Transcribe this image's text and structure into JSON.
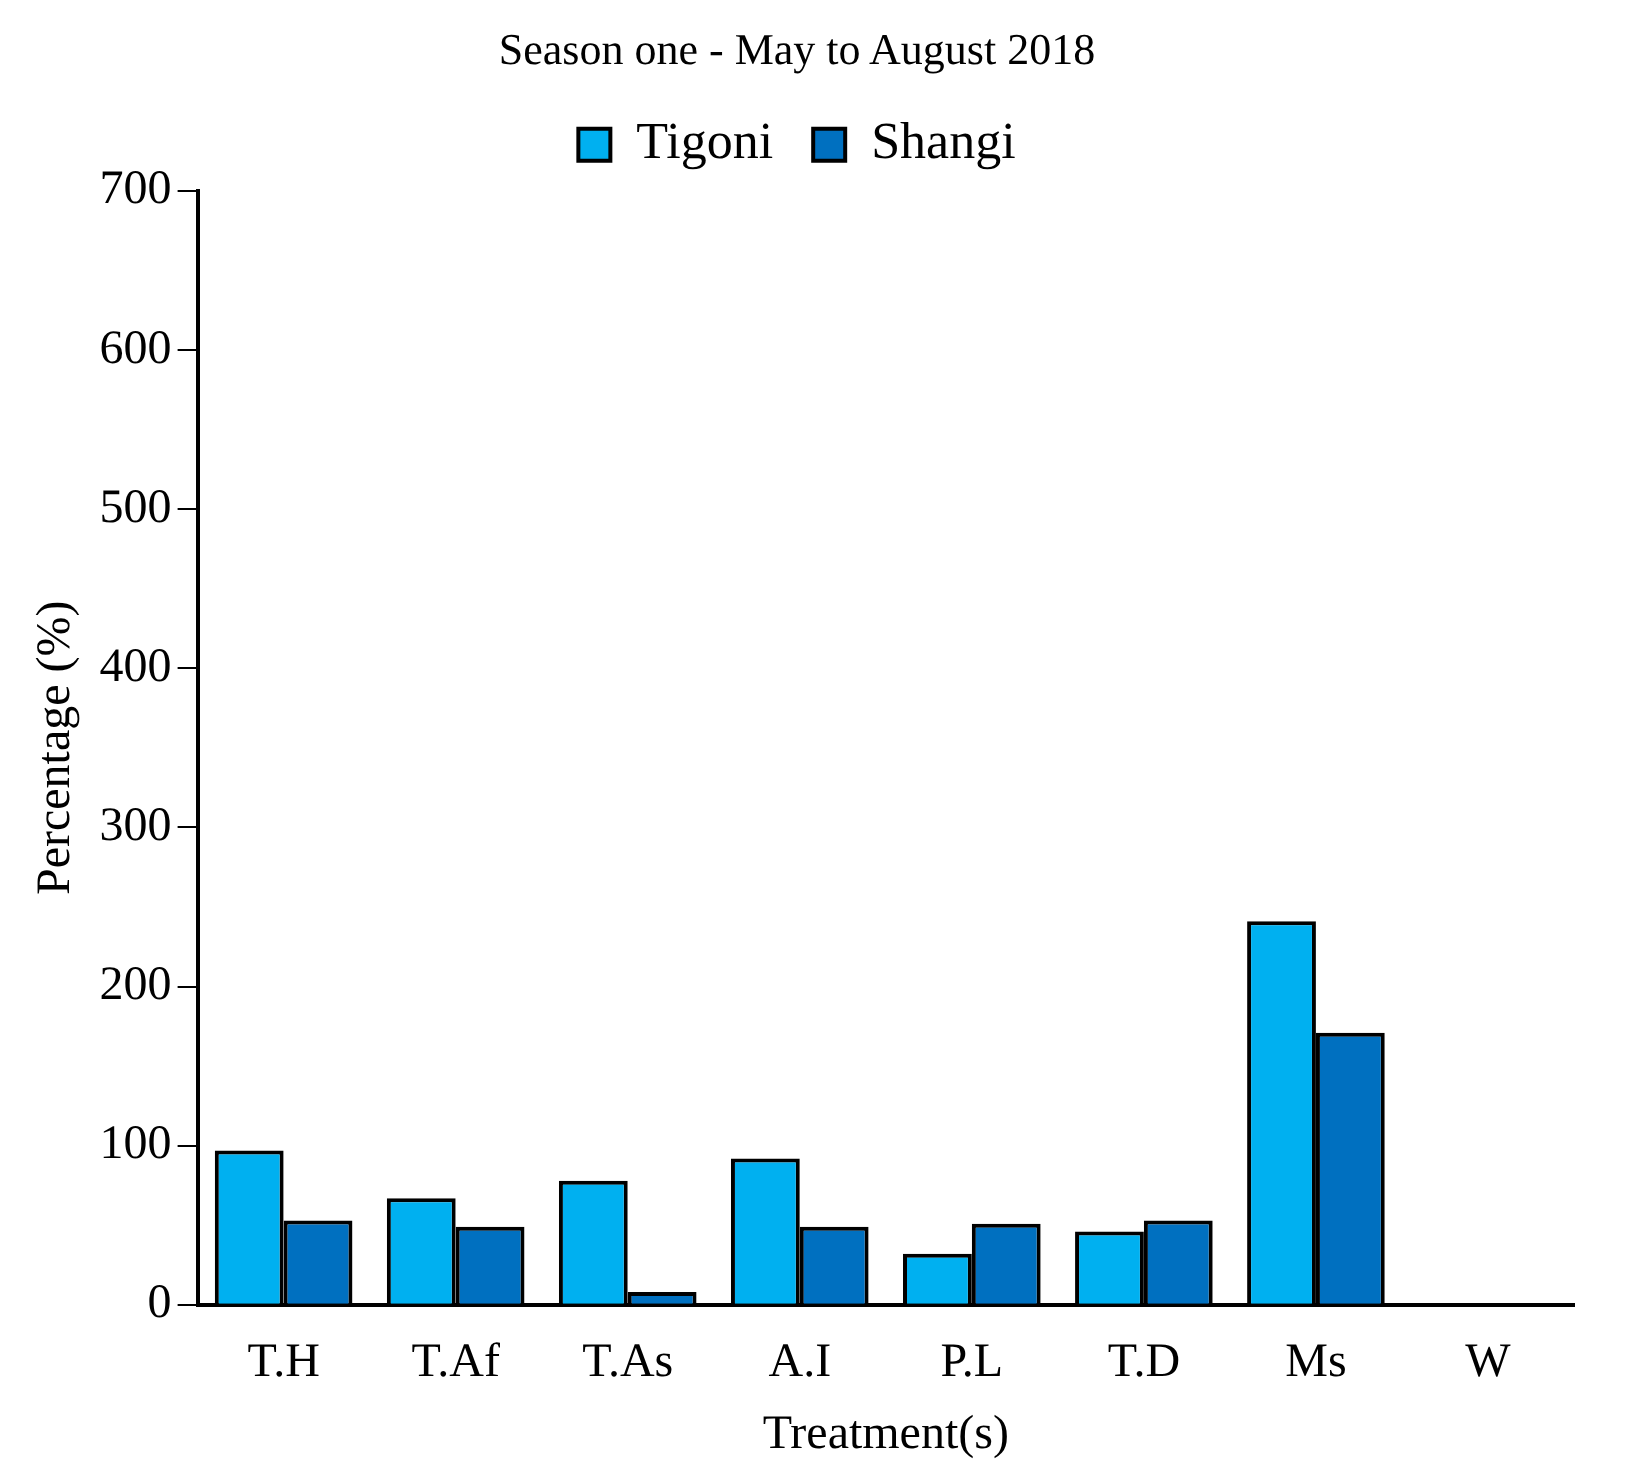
{
  "chart_data": {
    "type": "bar",
    "title": "Season one - May to August 2018",
    "xlabel": "Treatment(s)",
    "ylabel": "Percentage (%)",
    "categories": [
      "T.H",
      "T.Af",
      "T.As",
      "A.I",
      "P.L",
      "T.D",
      "Ms",
      "W"
    ],
    "series": [
      {
        "name": "Tigoni",
        "color": "#00b0f0",
        "values": [
          97,
          67,
          78,
          92,
          32,
          46,
          241,
          0
        ]
      },
      {
        "name": "Shangi",
        "color": "#0070c0",
        "values": [
          53,
          49,
          8,
          49,
          51,
          53,
          171,
          0
        ]
      }
    ],
    "ylim": [
      0,
      700
    ],
    "yticks": [
      0,
      100,
      200,
      300,
      400,
      500,
      600,
      700
    ],
    "grid": false,
    "legend": "top"
  }
}
